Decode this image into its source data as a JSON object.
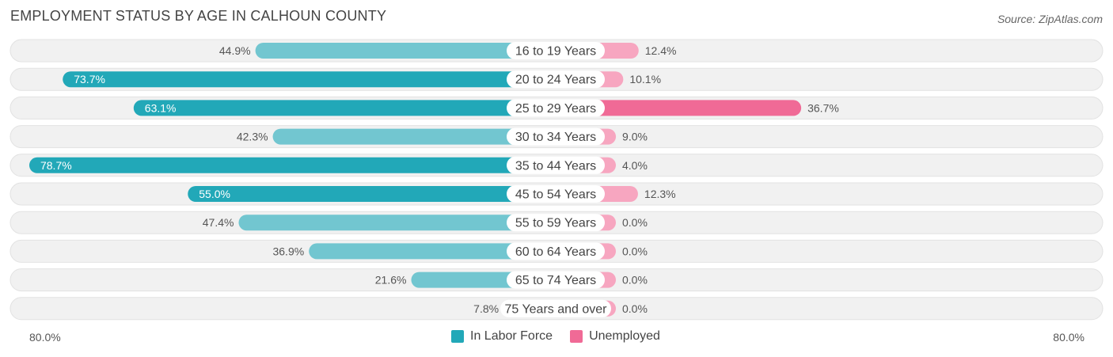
{
  "title": "EMPLOYMENT STATUS BY AGE IN CALHOUN COUNTY",
  "source": "Source: ZipAtlas.com",
  "colors": {
    "labor_strong": "#22a8b8",
    "labor_light": "#72c6d0",
    "unemp_strong": "#f06a96",
    "unemp_light": "#f7a6c0",
    "row_bg": "#f1f1f1"
  },
  "axis": {
    "left_label": "80.0%",
    "right_label": "80.0%"
  },
  "legend": {
    "labor": "In Labor Force",
    "unemployed": "Unemployed"
  },
  "chart_data": {
    "type": "bar",
    "orientation": "horizontal-diverging",
    "title": "EMPLOYMENT STATUS BY AGE IN CALHOUN COUNTY",
    "max": 80.0,
    "categories": [
      "16 to 19 Years",
      "20 to 24 Years",
      "25 to 29 Years",
      "30 to 34 Years",
      "35 to 44 Years",
      "45 to 54 Years",
      "55 to 59 Years",
      "60 to 64 Years",
      "65 to 74 Years",
      "75 Years and over"
    ],
    "series": [
      {
        "name": "In Labor Force",
        "values": [
          44.9,
          73.7,
          63.1,
          42.3,
          78.7,
          55.0,
          47.4,
          36.9,
          21.6,
          7.8
        ],
        "labels": [
          "44.9%",
          "73.7%",
          "63.1%",
          "42.3%",
          "78.7%",
          "55.0%",
          "47.4%",
          "36.9%",
          "21.6%",
          "7.8%"
        ]
      },
      {
        "name": "Unemployed",
        "values": [
          12.4,
          10.1,
          36.7,
          9.0,
          4.0,
          12.3,
          0.0,
          0.0,
          0.0,
          0.0
        ],
        "labels": [
          "12.4%",
          "10.1%",
          "36.7%",
          "9.0%",
          "4.0%",
          "12.3%",
          "0.0%",
          "0.0%",
          "0.0%",
          "0.0%"
        ]
      }
    ]
  }
}
